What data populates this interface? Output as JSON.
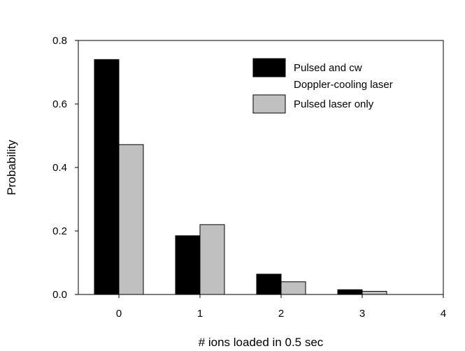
{
  "chart_data": {
    "type": "bar",
    "title": "",
    "xlabel": "# ions loaded in 0.5 sec",
    "ylabel": "Probability",
    "categories": [
      "0",
      "1",
      "2",
      "3"
    ],
    "x_ticks": [
      "0",
      "1",
      "2",
      "3",
      "4"
    ],
    "y_ticks": [
      "0.0",
      "0.2",
      "0.4",
      "0.6",
      "0.8"
    ],
    "xlim": [
      -0.5,
      4
    ],
    "ylim": [
      0,
      0.8
    ],
    "grid": false,
    "legend_position": "top-right",
    "series": [
      {
        "name": "Pulsed and cw Doppler-cooling laser",
        "legend_lines": [
          "Pulsed and cw",
          "Doppler-cooling laser"
        ],
        "color": "#000000",
        "values": [
          0.74,
          0.185,
          0.064,
          0.015
        ]
      },
      {
        "name": "Pulsed laser only",
        "legend_lines": [
          "Pulsed laser only"
        ],
        "color": "#c0c0c0",
        "values": [
          0.472,
          0.22,
          0.04,
          0.01
        ]
      }
    ]
  }
}
